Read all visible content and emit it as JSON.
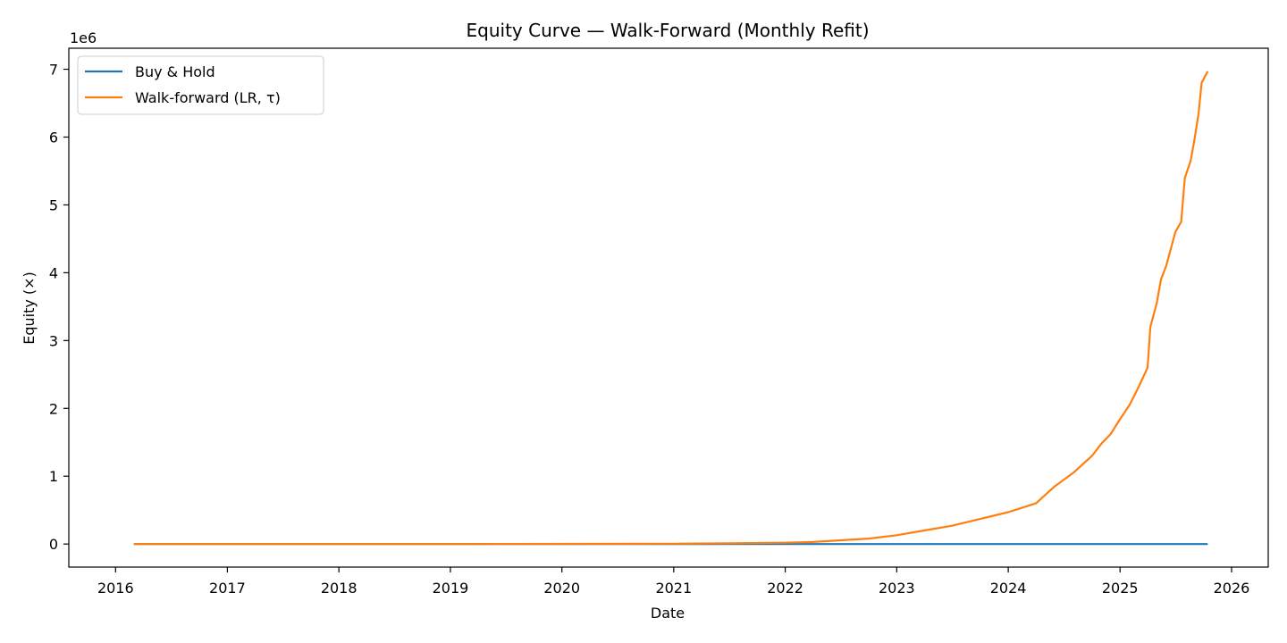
{
  "chart_data": {
    "type": "line",
    "title": "Equity Curve — Walk-Forward (Monthly Refit)",
    "xlabel": "Date",
    "ylabel": "Equity (×)",
    "y_offset_label": "1e6",
    "y_multiplier": 1000000,
    "xlim": [
      "2015-08-01",
      "2026-05-01"
    ],
    "ylim": [
      -340000,
      7310000
    ],
    "x_ticks": [
      {
        "label": "2016",
        "date": "2016-01-01"
      },
      {
        "label": "2017",
        "date": "2017-01-01"
      },
      {
        "label": "2018",
        "date": "2018-01-01"
      },
      {
        "label": "2019",
        "date": "2019-01-01"
      },
      {
        "label": "2020",
        "date": "2020-01-01"
      },
      {
        "label": "2021",
        "date": "2021-01-01"
      },
      {
        "label": "2022",
        "date": "2022-01-01"
      },
      {
        "label": "2023",
        "date": "2023-01-01"
      },
      {
        "label": "2024",
        "date": "2024-01-01"
      },
      {
        "label": "2025",
        "date": "2025-01-01"
      },
      {
        "label": "2026",
        "date": "2026-01-01"
      }
    ],
    "y_ticks": [
      {
        "label": "0",
        "value": 0
      },
      {
        "label": "1",
        "value": 1000000
      },
      {
        "label": "2",
        "value": 2000000
      },
      {
        "label": "3",
        "value": 3000000
      },
      {
        "label": "4",
        "value": 4000000
      },
      {
        "label": "5",
        "value": 5000000
      },
      {
        "label": "6",
        "value": 6000000
      },
      {
        "label": "7",
        "value": 7000000
      }
    ],
    "grid": false,
    "legend_position": "top-left",
    "series": [
      {
        "name": "Buy & Hold",
        "color": "#1f77b4",
        "points": [
          [
            "2016-03-01",
            0
          ],
          [
            "2025-10-15",
            0
          ]
        ]
      },
      {
        "name": "Walk-forward (LR, τ)",
        "color": "#ff7f0e",
        "points": [
          [
            "2016-03-01",
            0
          ],
          [
            "2019-01-01",
            0
          ],
          [
            "2021-01-01",
            5000
          ],
          [
            "2021-07-01",
            10000
          ],
          [
            "2022-01-01",
            20000
          ],
          [
            "2022-04-01",
            30000
          ],
          [
            "2022-07-01",
            55000
          ],
          [
            "2022-10-01",
            80000
          ],
          [
            "2023-01-01",
            130000
          ],
          [
            "2023-04-01",
            200000
          ],
          [
            "2023-07-01",
            270000
          ],
          [
            "2023-10-01",
            370000
          ],
          [
            "2024-01-01",
            470000
          ],
          [
            "2024-04-01",
            600000
          ],
          [
            "2024-06-01",
            850000
          ],
          [
            "2024-08-01",
            1050000
          ],
          [
            "2024-10-01",
            1300000
          ],
          [
            "2024-11-01",
            1480000
          ],
          [
            "2024-12-01",
            1620000
          ],
          [
            "2025-01-01",
            1840000
          ],
          [
            "2025-02-01",
            2050000
          ],
          [
            "2025-03-01",
            2300000
          ],
          [
            "2025-04-01",
            2600000
          ],
          [
            "2025-04-10",
            3200000
          ],
          [
            "2025-05-01",
            3550000
          ],
          [
            "2025-05-15",
            3900000
          ],
          [
            "2025-06-01",
            4100000
          ],
          [
            "2025-07-01",
            4600000
          ],
          [
            "2025-07-20",
            4750000
          ],
          [
            "2025-08-01",
            5400000
          ],
          [
            "2025-08-20",
            5650000
          ],
          [
            "2025-09-01",
            5950000
          ],
          [
            "2025-09-15",
            6350000
          ],
          [
            "2025-09-25",
            6800000
          ],
          [
            "2025-10-15",
            6970000
          ]
        ]
      }
    ]
  }
}
